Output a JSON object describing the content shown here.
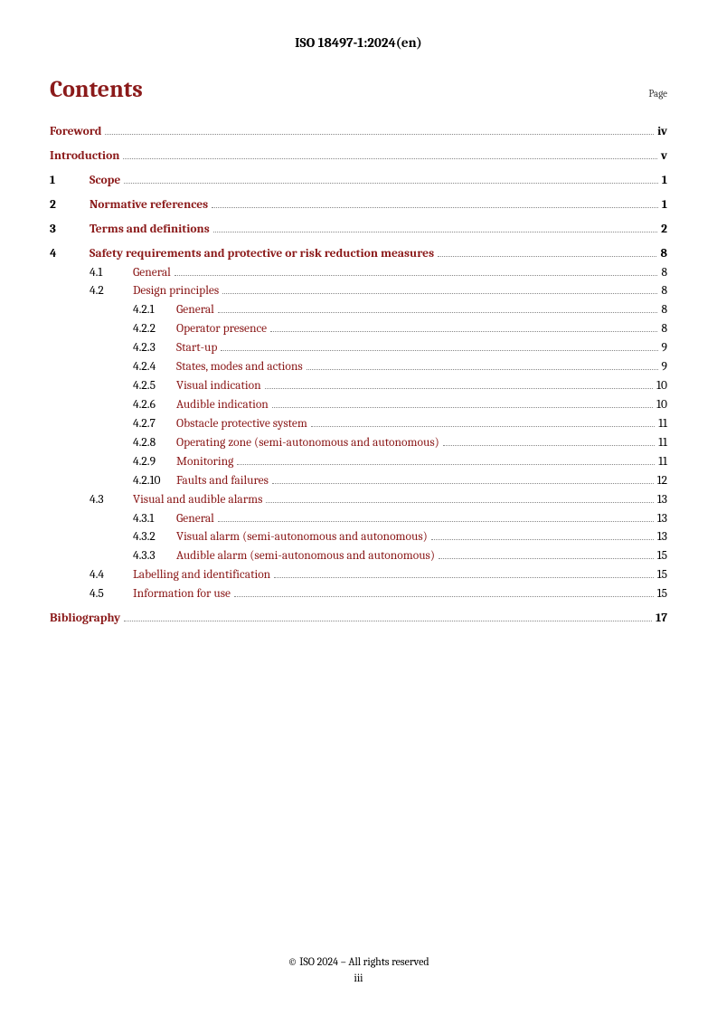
{
  "header": "ISO 18497-1:2024(en)",
  "contents_title": "Contents",
  "page_label": "Page",
  "footer_line1": "© ISO 2024 – All rights reserved",
  "footer_line2": "iii",
  "colors": {
    "heading_red": "#8b1a1a",
    "text": "#000000",
    "leader": "#888888",
    "background": "#ffffff"
  },
  "entries": [
    {
      "level": 0,
      "num": "",
      "title": "Foreword",
      "page": "iv",
      "bold": true,
      "link": true,
      "gap": false
    },
    {
      "level": 0,
      "num": "",
      "title": "Introduction",
      "page": "v",
      "bold": true,
      "link": true,
      "gap": true
    },
    {
      "level": 1,
      "num": "1",
      "title": "Scope",
      "page": "1",
      "bold": true,
      "link": true,
      "gap": true
    },
    {
      "level": 1,
      "num": "2",
      "title": "Normative references",
      "page": "1",
      "bold": true,
      "link": true,
      "gap": true
    },
    {
      "level": 1,
      "num": "3",
      "title": "Terms and definitions",
      "page": "2",
      "bold": true,
      "link": true,
      "gap": true
    },
    {
      "level": 1,
      "num": "4",
      "title": "Safety requirements and protective or risk reduction measures",
      "page": "8",
      "bold": true,
      "link": true,
      "gap": true
    },
    {
      "level": 2,
      "num": "4.1",
      "title": "General",
      "page": "8",
      "bold": false,
      "link": true,
      "gap": false
    },
    {
      "level": 2,
      "num": "4.2",
      "title": "Design principles",
      "page": "8",
      "bold": false,
      "link": true,
      "gap": false
    },
    {
      "level": 3,
      "num": "4.2.1",
      "title": "General",
      "page": "8",
      "bold": false,
      "link": true,
      "gap": false
    },
    {
      "level": 3,
      "num": "4.2.2",
      "title": "Operator presence",
      "page": "8",
      "bold": false,
      "link": true,
      "gap": false
    },
    {
      "level": 3,
      "num": "4.2.3",
      "title": "Start-up",
      "page": "9",
      "bold": false,
      "link": true,
      "gap": false
    },
    {
      "level": 3,
      "num": "4.2.4",
      "title": "States, modes and actions",
      "page": "9",
      "bold": false,
      "link": true,
      "gap": false
    },
    {
      "level": 3,
      "num": "4.2.5",
      "title": "Visual indication",
      "page": "10",
      "bold": false,
      "link": true,
      "gap": false
    },
    {
      "level": 3,
      "num": "4.2.6",
      "title": "Audible indication",
      "page": "10",
      "bold": false,
      "link": true,
      "gap": false
    },
    {
      "level": 3,
      "num": "4.2.7",
      "title": "Obstacle protective system",
      "page": "11",
      "bold": false,
      "link": true,
      "gap": false
    },
    {
      "level": 3,
      "num": "4.2.8",
      "title": "Operating zone (semi-autonomous and autonomous)",
      "page": "11",
      "bold": false,
      "link": true,
      "gap": false
    },
    {
      "level": 3,
      "num": "4.2.9",
      "title": "Monitoring",
      "page": "11",
      "bold": false,
      "link": true,
      "gap": false
    },
    {
      "level": 3,
      "num": "4.2.10",
      "title": "Faults and failures",
      "page": "12",
      "bold": false,
      "link": true,
      "gap": false
    },
    {
      "level": 2,
      "num": "4.3",
      "title": "Visual and audible alarms",
      "page": "13",
      "bold": false,
      "link": true,
      "gap": false
    },
    {
      "level": 3,
      "num": "4.3.1",
      "title": "General",
      "page": "13",
      "bold": false,
      "link": true,
      "gap": false
    },
    {
      "level": 3,
      "num": "4.3.2",
      "title": "Visual alarm (semi-autonomous and autonomous)",
      "page": "13",
      "bold": false,
      "link": true,
      "gap": false
    },
    {
      "level": 3,
      "num": "4.3.3",
      "title": "Audible alarm (semi-autonomous and autonomous)",
      "page": "15",
      "bold": false,
      "link": true,
      "gap": false
    },
    {
      "level": 2,
      "num": "4.4",
      "title": "Labelling and identification",
      "page": "15",
      "bold": false,
      "link": true,
      "gap": false
    },
    {
      "level": 2,
      "num": "4.5",
      "title": "Information for use",
      "page": "15",
      "bold": false,
      "link": true,
      "gap": false
    },
    {
      "level": 0,
      "num": "",
      "title": "Bibliography",
      "page": "17",
      "bold": true,
      "link": true,
      "gap": true
    }
  ]
}
